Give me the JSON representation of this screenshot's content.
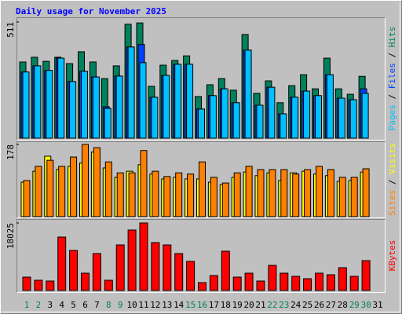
{
  "chart_data": [
    {
      "type": "bar",
      "title": "Daily usage for November 2025",
      "ylim": [
        0,
        511
      ],
      "yticks": [
        511
      ],
      "legend_separator": " / ",
      "series": [
        {
          "name": "Hits",
          "color": "#00805c",
          "values": [
            335,
            356,
            338,
            356,
            328,
            380,
            335,
            262,
            318,
            501,
            507,
            228,
            321,
            342,
            362,
            183,
            235,
            262,
            211,
            456,
            197,
            252,
            156,
            231,
            279,
            217,
            352,
            217,
            193,
            272,
            null
          ]
        },
        {
          "name": "Files",
          "color": "#0040ff",
          "values": [
            291,
            318,
            298,
            352,
            249,
            294,
            269,
            138,
            273,
            401,
            412,
            180,
            276,
            325,
            325,
            128,
            187,
            217,
            156,
            387,
            145,
            224,
            107,
            180,
            207,
            187,
            279,
            176,
            169,
            217,
            null
          ]
        },
        {
          "name": "Pages",
          "color": "#00c0ff",
          "values": [
            291,
            318,
            298,
            352,
            249,
            294,
            269,
            131,
            273,
            401,
            332,
            180,
            276,
            325,
            325,
            128,
            187,
            217,
            156,
            387,
            145,
            224,
            107,
            180,
            207,
            187,
            279,
            176,
            169,
            197,
            null
          ]
        }
      ]
    },
    {
      "type": "bar",
      "ylim": [
        0,
        178
      ],
      "yticks": [
        178
      ],
      "legend_separator": " / ",
      "series": [
        {
          "name": "Visits",
          "color": "#ffff00",
          "values": [
            85,
            112,
            149,
            116,
            124,
            132,
            159,
            120,
            97,
            112,
            128,
            105,
            93,
            97,
            93,
            93,
            85,
            79,
            97,
            110,
            101,
            108,
            89,
            108,
            112,
            105,
            101,
            87,
            89,
            110,
            null
          ]
        },
        {
          "name": "Sites",
          "color": "#ff8000",
          "values": [
            89,
            124,
            139,
            124,
            147,
            178,
            170,
            135,
            108,
            108,
            163,
            112,
            99,
            108,
            105,
            135,
            97,
            83,
            108,
            124,
            116,
            116,
            116,
            105,
            116,
            124,
            116,
            97,
            97,
            118,
            null
          ]
        }
      ]
    },
    {
      "type": "bar",
      "ylim": [
        0,
        18025
      ],
      "yticks": [
        18025
      ],
      "categories": [
        "1",
        "2",
        "3",
        "4",
        "5",
        "6",
        "7",
        "8",
        "9",
        "10",
        "11",
        "12",
        "13",
        "14",
        "15",
        "16",
        "17",
        "18",
        "19",
        "20",
        "21",
        "22",
        "23",
        "24",
        "25",
        "26",
        "27",
        "28",
        "29",
        "30",
        "31"
      ],
      "category_color": "#000000",
      "highlight_color": "#00805c",
      "highlight_indices": [
        0,
        1,
        7,
        8,
        14,
        15,
        21,
        22,
        28,
        29
      ],
      "series": [
        {
          "name": "KBytes",
          "color": "#ff0000",
          "values": [
            3563,
            2725,
            2515,
            14253,
            10690,
            4611,
            9851,
            2725,
            12157,
            16139,
            18025,
            12786,
            12157,
            9851,
            7755,
            2096,
            3982,
            10480,
            3563,
            4611,
            2515,
            6707,
            4611,
            3773,
            3144,
            4611,
            4192,
            6078,
            3773,
            7965,
            null
          ]
        }
      ]
    }
  ]
}
